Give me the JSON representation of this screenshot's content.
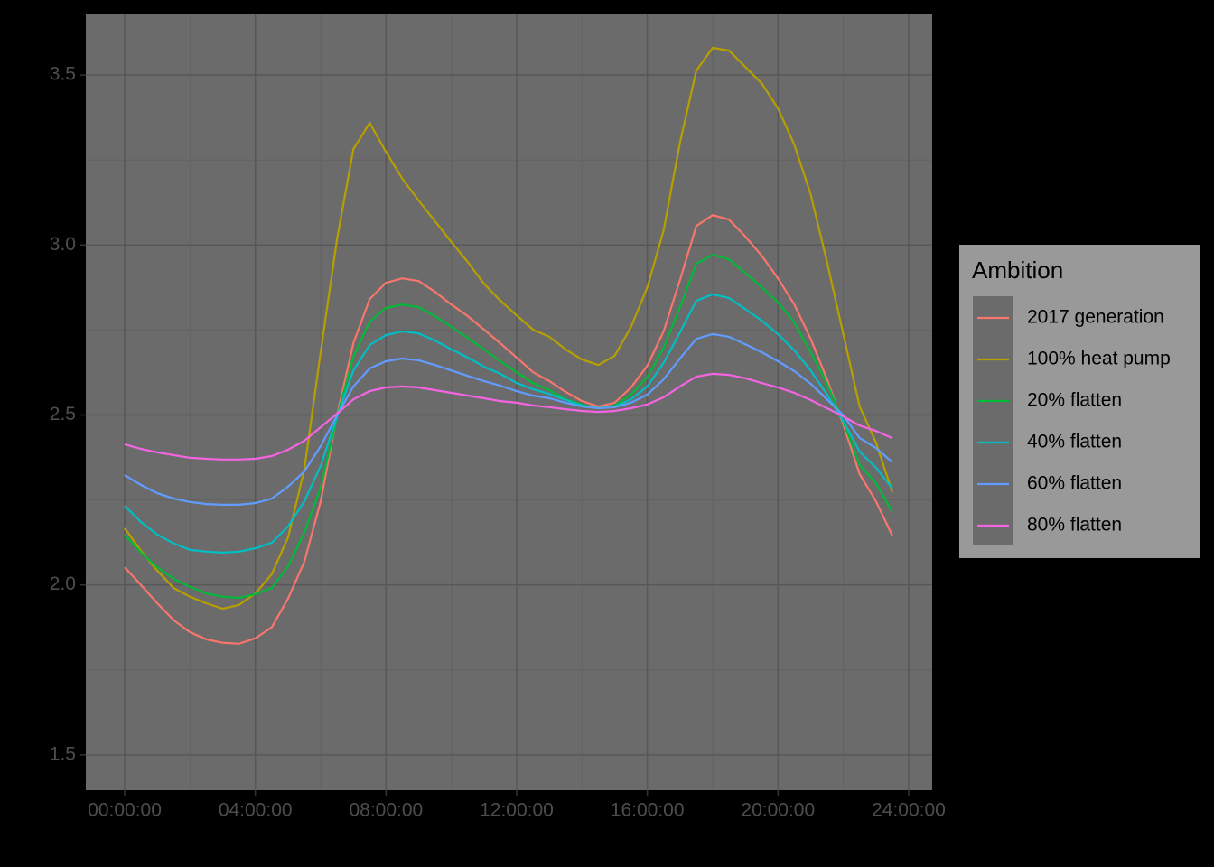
{
  "chart_data": {
    "type": "line",
    "x": [
      0,
      0.5,
      1,
      1.5,
      2,
      2.5,
      3,
      3.5,
      4,
      4.5,
      5,
      5.5,
      6,
      6.5,
      7,
      7.5,
      8,
      8.5,
      9,
      9.5,
      10,
      10.5,
      11,
      11.5,
      12,
      12.5,
      13,
      13.5,
      14,
      14.5,
      15,
      15.5,
      16,
      16.5,
      17,
      17.5,
      18,
      18.5,
      19,
      19.5,
      20,
      20.5,
      21,
      21.5,
      22,
      22.5,
      23,
      23.5
    ],
    "xlim": [
      -1.19,
      24.72
    ],
    "xticks": [
      {
        "value": 0,
        "label": "00:00:00"
      },
      {
        "value": 4,
        "label": "04:00:00"
      },
      {
        "value": 8,
        "label": "08:00:00"
      },
      {
        "value": 12,
        "label": "12:00:00"
      },
      {
        "value": 16,
        "label": "16:00:00"
      },
      {
        "value": 20,
        "label": "20:00:00"
      },
      {
        "value": 24,
        "label": "24:00:00"
      }
    ],
    "ylim": [
      1.396,
      3.681
    ],
    "yticks": [
      1.5,
      {
        "value": 2,
        "label": "2.0"
      },
      2.5,
      {
        "value": 3,
        "label": "3.0"
      },
      3.5
    ],
    "grid": true,
    "legend_title": "Ambition",
    "legend_position": "right",
    "series": [
      {
        "name": "2017 generation",
        "color": "#F8766D",
        "values": [
          2.052,
          2.0,
          1.946,
          1.896,
          1.861,
          1.84,
          1.83,
          1.827,
          1.843,
          1.875,
          1.96,
          2.068,
          2.246,
          2.499,
          2.711,
          2.841,
          2.889,
          2.902,
          2.894,
          2.862,
          2.825,
          2.791,
          2.751,
          2.711,
          2.669,
          2.626,
          2.6,
          2.568,
          2.541,
          2.525,
          2.536,
          2.581,
          2.645,
          2.746,
          2.897,
          3.056,
          3.088,
          3.075,
          3.025,
          2.969,
          2.902,
          2.825,
          2.724,
          2.605,
          2.472,
          2.326,
          2.246,
          2.145
        ]
      },
      {
        "name": "100% heat pump",
        "color": "#B79F00",
        "values": [
          2.167,
          2.1,
          2.042,
          1.991,
          1.965,
          1.946,
          1.93,
          1.941,
          1.975,
          2.031,
          2.14,
          2.339,
          2.685,
          3.017,
          3.282,
          3.359,
          3.274,
          3.195,
          3.131,
          3.07,
          3.009,
          2.95,
          2.886,
          2.836,
          2.793,
          2.751,
          2.73,
          2.693,
          2.663,
          2.647,
          2.674,
          2.759,
          2.876,
          3.043,
          3.301,
          3.513,
          3.58,
          3.572,
          3.524,
          3.476,
          3.402,
          3.295,
          3.149,
          2.95,
          2.738,
          2.525,
          2.419,
          2.273
        ]
      },
      {
        "name": "20% flatten",
        "color": "#00BA38",
        "values": [
          2.148,
          2.095,
          2.052,
          2.018,
          1.994,
          1.975,
          1.965,
          1.962,
          1.973,
          1.991,
          2.055,
          2.154,
          2.286,
          2.494,
          2.671,
          2.775,
          2.815,
          2.825,
          2.817,
          2.791,
          2.759,
          2.727,
          2.693,
          2.658,
          2.626,
          2.594,
          2.573,
          2.546,
          2.531,
          2.52,
          2.528,
          2.56,
          2.611,
          2.698,
          2.817,
          2.945,
          2.971,
          2.958,
          2.918,
          2.876,
          2.831,
          2.772,
          2.685,
          2.592,
          2.48,
          2.353,
          2.3,
          2.214
        ]
      },
      {
        "name": "40% flatten",
        "color": "#00BFC4",
        "values": [
          2.233,
          2.185,
          2.148,
          2.122,
          2.103,
          2.098,
          2.095,
          2.098,
          2.108,
          2.124,
          2.172,
          2.246,
          2.35,
          2.494,
          2.631,
          2.706,
          2.735,
          2.746,
          2.74,
          2.719,
          2.693,
          2.669,
          2.642,
          2.621,
          2.594,
          2.576,
          2.562,
          2.544,
          2.528,
          2.52,
          2.525,
          2.546,
          2.584,
          2.653,
          2.743,
          2.836,
          2.855,
          2.844,
          2.812,
          2.778,
          2.738,
          2.69,
          2.631,
          2.56,
          2.483,
          2.392,
          2.345,
          2.284
        ]
      },
      {
        "name": "60% flatten",
        "color": "#619CFF",
        "values": [
          2.323,
          2.294,
          2.27,
          2.254,
          2.244,
          2.238,
          2.236,
          2.236,
          2.241,
          2.254,
          2.289,
          2.334,
          2.408,
          2.499,
          2.584,
          2.637,
          2.658,
          2.666,
          2.661,
          2.647,
          2.631,
          2.615,
          2.6,
          2.586,
          2.57,
          2.557,
          2.549,
          2.536,
          2.525,
          2.52,
          2.523,
          2.536,
          2.56,
          2.605,
          2.666,
          2.724,
          2.738,
          2.73,
          2.708,
          2.685,
          2.658,
          2.629,
          2.592,
          2.546,
          2.499,
          2.432,
          2.403,
          2.361
        ]
      },
      {
        "name": "80% flatten",
        "color": "#F564E3",
        "values": [
          2.414,
          2.4,
          2.39,
          2.382,
          2.374,
          2.371,
          2.369,
          2.369,
          2.371,
          2.379,
          2.398,
          2.424,
          2.464,
          2.504,
          2.546,
          2.57,
          2.581,
          2.584,
          2.581,
          2.573,
          2.565,
          2.557,
          2.549,
          2.541,
          2.536,
          2.528,
          2.523,
          2.517,
          2.512,
          2.509,
          2.512,
          2.52,
          2.531,
          2.552,
          2.584,
          2.613,
          2.621,
          2.618,
          2.608,
          2.594,
          2.581,
          2.565,
          2.544,
          2.52,
          2.496,
          2.469,
          2.453,
          2.432
        ]
      }
    ]
  }
}
